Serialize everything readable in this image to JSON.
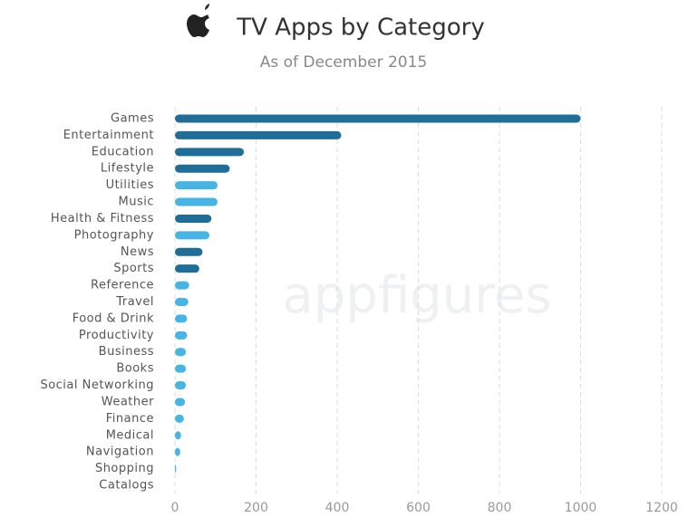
{
  "chart_data": {
    "type": "bar",
    "orientation": "horizontal",
    "title": "TV Apps by Category",
    "subtitle": "As of December 2015",
    "watermark": "appfigures",
    "categories": [
      "Games",
      "Entertainment",
      "Education",
      "Lifestyle",
      "Utilities",
      "Music",
      "Health & Fitness",
      "Photography",
      "News",
      "Sports",
      "Reference",
      "Travel",
      "Food & Drink",
      "Productivity",
      "Business",
      "Books",
      "Social Networking",
      "Weather",
      "Finance",
      "Medical",
      "Navigation",
      "Shopping",
      "Catalogs"
    ],
    "values": [
      1000,
      410,
      170,
      135,
      105,
      105,
      90,
      85,
      68,
      60,
      35,
      33,
      30,
      30,
      27,
      27,
      27,
      25,
      22,
      15,
      13,
      3,
      0
    ],
    "colors": [
      "#1e6e98",
      "#1e6e98",
      "#1e6e98",
      "#1e6e98",
      "#46b5e5",
      "#46b5e5",
      "#1e6e98",
      "#46b5e5",
      "#1e6e98",
      "#1e6e98",
      "#46b5e5",
      "#46b5e5",
      "#46b5e5",
      "#46b5e5",
      "#46b5e5",
      "#46b5e5",
      "#46b5e5",
      "#46b5e5",
      "#46b5e5",
      "#46b5e5",
      "#46b5e5",
      "#46b5e5",
      "#46b5e5"
    ],
    "xlim": [
      0,
      1200
    ],
    "xticks": [
      0,
      200,
      400,
      600,
      800,
      1000,
      1200
    ],
    "grid": true
  }
}
